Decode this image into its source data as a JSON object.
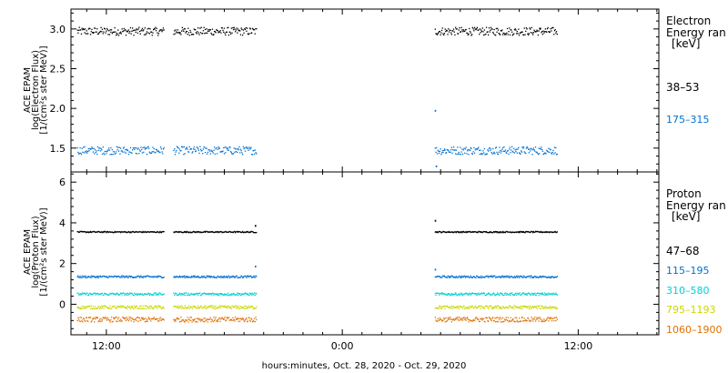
{
  "chart_data": [
    {
      "type": "scatter",
      "panel": "electron",
      "ylabel_lines": [
        "ACE EPAM",
        "log(Electron Flux)",
        "[1/(cm²s ster MeV)]"
      ],
      "legend_title": [
        "Electron",
        "Energy ran",
        "[keV]"
      ],
      "ylim": [
        1.2,
        3.25
      ],
      "yticks": [
        "1.5",
        "2.0",
        "2.5",
        "3.0"
      ],
      "ytick_values": [
        1.5,
        2.0,
        2.5,
        3.0
      ],
      "series": [
        {
          "name": "38–53",
          "color": "#000000",
          "level": 2.97,
          "noise": 0.05,
          "segments": [
            [
              -1.5,
              2.9
            ],
            [
              3.4,
              7.6
            ],
            [
              16.7,
              22.9
            ]
          ]
        },
        {
          "name": "175–315",
          "color": "#0070d0",
          "level": 1.47,
          "noise": 0.05,
          "segments": [
            [
              -1.5,
              2.9
            ],
            [
              3.4,
              7.6
            ],
            [
              16.7,
              22.9
            ]
          ],
          "spikes": [
            [
              16.7,
              1.97
            ],
            [
              16.75,
              1.27
            ]
          ]
        }
      ]
    },
    {
      "type": "scatter",
      "panel": "proton",
      "ylabel_lines": [
        "ACE EPAM",
        "log(Proton Flux)",
        "[1/(cm²s ster MeV)]"
      ],
      "legend_title": [
        "Proton",
        "Energy ran",
        "[keV]"
      ],
      "ylim": [
        -1.5,
        6.5
      ],
      "yticks": [
        "0",
        "2",
        "4",
        "6"
      ],
      "ytick_values": [
        0,
        2,
        4,
        6
      ],
      "series": [
        {
          "name": "47–68",
          "color": "#000000",
          "level": 3.55,
          "noise": 0.03,
          "segments": [
            [
              -1.5,
              2.9
            ],
            [
              3.4,
              7.6
            ],
            [
              16.7,
              22.9
            ]
          ],
          "spikes": [
            [
              7.55,
              3.85
            ],
            [
              16.7,
              4.1
            ]
          ]
        },
        {
          "name": "115–195",
          "color": "#0070d0",
          "level": 1.35,
          "noise": 0.05,
          "segments": [
            [
              -1.5,
              2.9
            ],
            [
              3.4,
              7.6
            ],
            [
              16.7,
              22.9
            ]
          ],
          "spikes": [
            [
              7.55,
              1.85
            ],
            [
              16.7,
              1.7
            ]
          ]
        },
        {
          "name": "310–580",
          "color": "#00d0d0",
          "level": 0.5,
          "noise": 0.06,
          "segments": [
            [
              -1.5,
              2.9
            ],
            [
              3.4,
              7.6
            ],
            [
              16.7,
              22.9
            ]
          ]
        },
        {
          "name": "795–1193",
          "color": "#c8d800",
          "level": -0.15,
          "noise": 0.08,
          "segments": [
            [
              -1.5,
              2.9
            ],
            [
              3.4,
              7.6
            ],
            [
              16.7,
              22.9
            ]
          ]
        },
        {
          "name": "1060–1900",
          "color": "#e07000",
          "level": -0.75,
          "noise": 0.12,
          "segments": [
            [
              -1.5,
              2.9
            ],
            [
              3.4,
              7.6
            ],
            [
              16.7,
              22.9
            ]
          ]
        }
      ]
    }
  ],
  "x_axis": {
    "xlim": [
      -1.8,
      28.1
    ],
    "tick_labels": [
      "12:00",
      "0:00",
      "12:00"
    ],
    "tick_values": [
      0,
      12,
      24
    ],
    "minor_tick_step_hours": 1,
    "label": "hours:minutes, Oct. 28, 2020 - Oct. 29, 2020"
  }
}
